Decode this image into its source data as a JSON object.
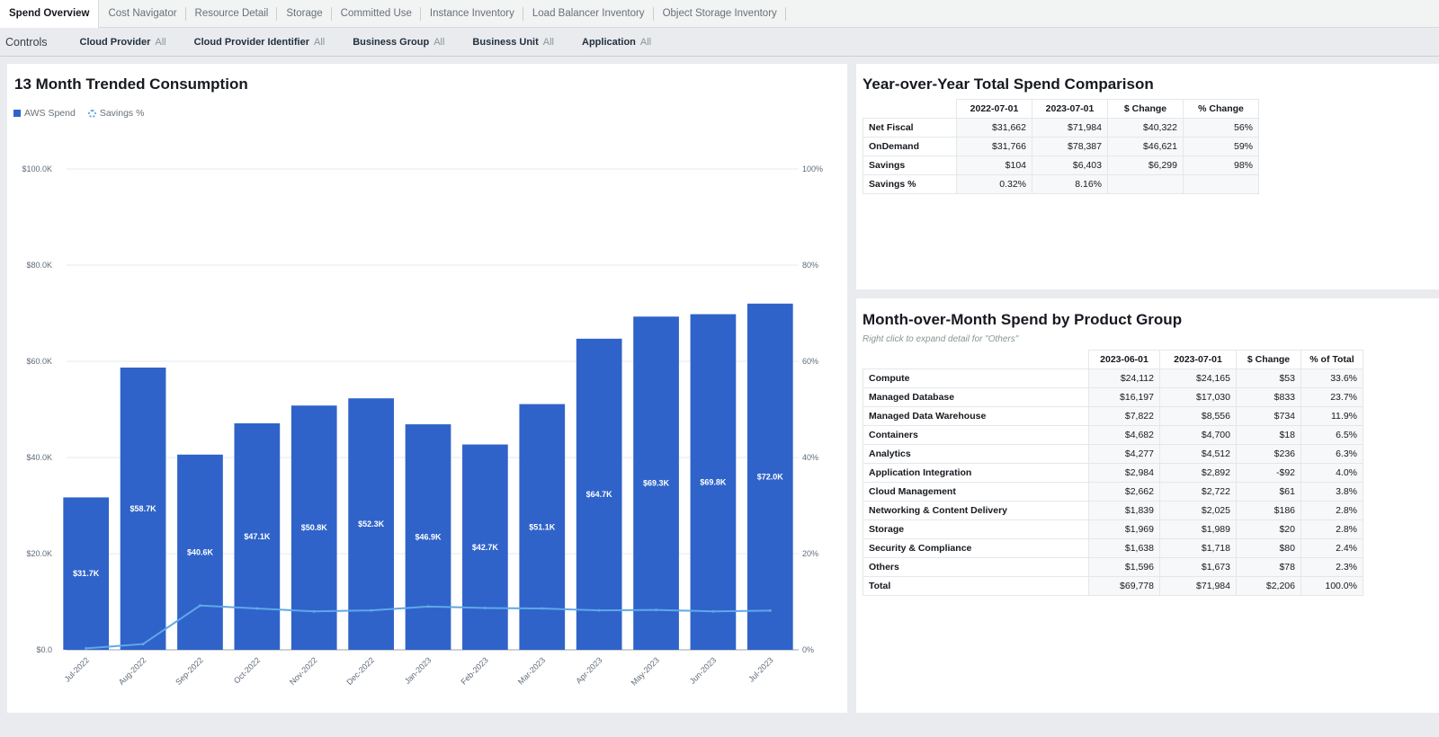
{
  "tabs": [
    {
      "label": "Spend Overview",
      "active": true
    },
    {
      "label": "Cost Navigator"
    },
    {
      "label": "Resource Detail"
    },
    {
      "label": "Storage"
    },
    {
      "label": "Committed Use"
    },
    {
      "label": "Instance Inventory"
    },
    {
      "label": "Load Balancer Inventory"
    },
    {
      "label": "Object Storage Inventory"
    }
  ],
  "controls": {
    "title": "Controls",
    "filters": [
      {
        "label": "Cloud Provider",
        "value": "All"
      },
      {
        "label": "Cloud Provider Identifier",
        "value": "All"
      },
      {
        "label": "Business Group",
        "value": "All"
      },
      {
        "label": "Business Unit",
        "value": "All"
      },
      {
        "label": "Application",
        "value": "All"
      }
    ]
  },
  "trend_panel": {
    "title": "13 Month Trended Consumption",
    "legend": [
      "AWS Spend",
      "Savings %"
    ]
  },
  "chart_data": {
    "type": "bar",
    "title": "13 Month Trended Consumption",
    "categories": [
      "Jul-2022",
      "Aug-2022",
      "Sep-2022",
      "Oct-2022",
      "Nov-2022",
      "Dec-2022",
      "Jan-2023",
      "Feb-2023",
      "Mar-2023",
      "Apr-2023",
      "May-2023",
      "Jun-2023",
      "Jul-2023"
    ],
    "series": [
      {
        "name": "AWS Spend",
        "type": "bar",
        "axis": "left",
        "color": "#2f63c9",
        "values": [
          31.7,
          58.7,
          40.6,
          47.1,
          50.8,
          52.3,
          46.9,
          42.7,
          51.1,
          64.7,
          69.3,
          69.8,
          72.0
        ],
        "labels": [
          "$31.7K",
          "$58.7K",
          "$40.6K",
          "$47.1K",
          "$50.8K",
          "$52.3K",
          "$46.9K",
          "$42.7K",
          "$51.1K",
          "$64.7K",
          "$69.3K",
          "$69.8K",
          "$72.0K"
        ]
      },
      {
        "name": "Savings %",
        "type": "line",
        "axis": "right",
        "color": "#5fa8e8",
        "values": [
          0.3,
          1.2,
          9.2,
          8.6,
          8.0,
          8.2,
          9.0,
          8.7,
          8.6,
          8.2,
          8.3,
          8.0,
          8.16
        ]
      }
    ],
    "y_left": {
      "min": 0,
      "max": 100,
      "unit": "K",
      "ticks": [
        "$0.0",
        "$20.0K",
        "$40.0K",
        "$60.0K",
        "$80.0K",
        "$100.0K"
      ]
    },
    "y_right": {
      "min": 0,
      "max": 100,
      "ticks": [
        "0%",
        "20%",
        "40%",
        "60%",
        "80%",
        "100%"
      ]
    },
    "grid": true,
    "legend_position": "top-left"
  },
  "yoy": {
    "title": "Year-over-Year Total Spend Comparison",
    "columns": [
      "2022-07-01",
      "2023-07-01",
      "$ Change",
      "% Change"
    ],
    "rows": [
      {
        "label": "Net Fiscal",
        "cells": [
          "$31,662",
          "$71,984",
          "$40,322",
          "56%"
        ]
      },
      {
        "label": "OnDemand",
        "cells": [
          "$31,766",
          "$78,387",
          "$46,621",
          "59%"
        ]
      },
      {
        "label": "Savings",
        "cells": [
          "$104",
          "$6,403",
          "$6,299",
          "98%"
        ]
      },
      {
        "label": "Savings %",
        "cells": [
          "0.32%",
          "8.16%",
          "",
          ""
        ]
      }
    ]
  },
  "mom": {
    "title": "Month-over-Month Spend by Product Group",
    "note": "Right click to expand detail for \"Others\"",
    "columns": [
      "2023-06-01",
      "2023-07-01",
      "$ Change",
      "% of Total"
    ],
    "rows": [
      {
        "label": "Compute",
        "cells": [
          "$24,112",
          "$24,165",
          "$53",
          "33.6%"
        ]
      },
      {
        "label": "Managed Database",
        "cells": [
          "$16,197",
          "$17,030",
          "$833",
          "23.7%"
        ]
      },
      {
        "label": "Managed Data Warehouse",
        "cells": [
          "$7,822",
          "$8,556",
          "$734",
          "11.9%"
        ]
      },
      {
        "label": "Containers",
        "cells": [
          "$4,682",
          "$4,700",
          "$18",
          "6.5%"
        ]
      },
      {
        "label": "Analytics",
        "cells": [
          "$4,277",
          "$4,512",
          "$236",
          "6.3%"
        ]
      },
      {
        "label": "Application Integration",
        "cells": [
          "$2,984",
          "$2,892",
          "-$92",
          "4.0%"
        ]
      },
      {
        "label": "Cloud Management",
        "cells": [
          "$2,662",
          "$2,722",
          "$61",
          "3.8%"
        ]
      },
      {
        "label": "Networking & Content Delivery",
        "cells": [
          "$1,839",
          "$2,025",
          "$186",
          "2.8%"
        ]
      },
      {
        "label": "Storage",
        "cells": [
          "$1,969",
          "$1,989",
          "$20",
          "2.8%"
        ]
      },
      {
        "label": "Security & Compliance",
        "cells": [
          "$1,638",
          "$1,718",
          "$80",
          "2.4%"
        ]
      },
      {
        "label": "Others",
        "cells": [
          "$1,596",
          "$1,673",
          "$78",
          "2.3%"
        ]
      },
      {
        "label": "Total",
        "cells": [
          "$69,778",
          "$71,984",
          "$2,206",
          "100.0%"
        ]
      }
    ]
  }
}
